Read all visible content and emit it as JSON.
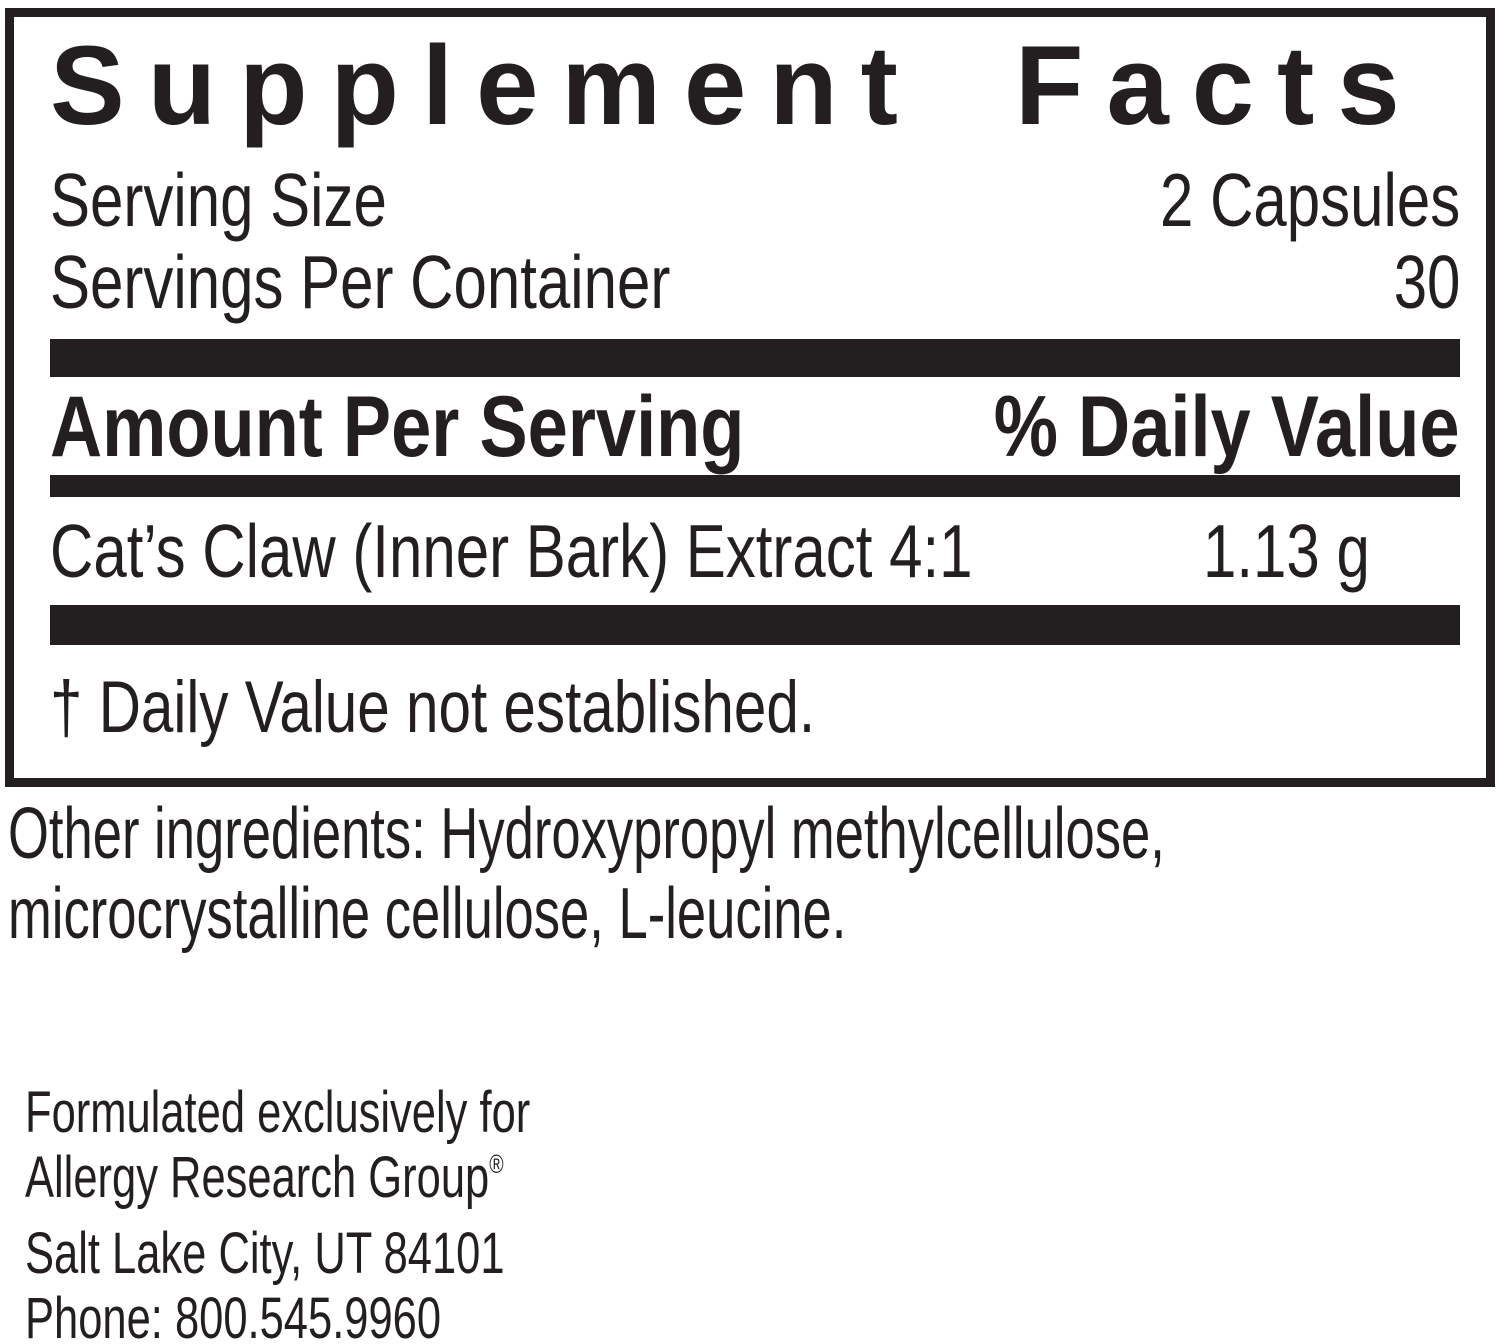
{
  "label": {
    "title": "Supplement Facts",
    "serving_size_label": "Serving Size",
    "serving_size_value": "2 Capsules",
    "servings_per_container_label": "Servings Per Container",
    "servings_per_container_value": "30",
    "amount_per_serving_header": "Amount Per Serving",
    "daily_value_header": "% Daily Value",
    "rows": [
      {
        "name": "Cat’s Claw (Inner Bark) Extract 4:1",
        "amount": "1.13 g",
        "daily_value": "†"
      }
    ],
    "footnote": "† Daily Value not established."
  },
  "other_ingredients": {
    "line1": "Other ingredients: Hydroxypropyl methylcellulose,",
    "line2": "microcrystalline cellulose, L-leucine."
  },
  "distributor": {
    "line1": "Formulated exclusively for",
    "line2": "Allergy Research Group",
    "registered_mark": "®",
    "line3": "Salt Lake City, UT 84101",
    "line4": "Phone: 800.545.9960"
  },
  "colors": {
    "text": "#231f20",
    "background": "#ffffff"
  }
}
